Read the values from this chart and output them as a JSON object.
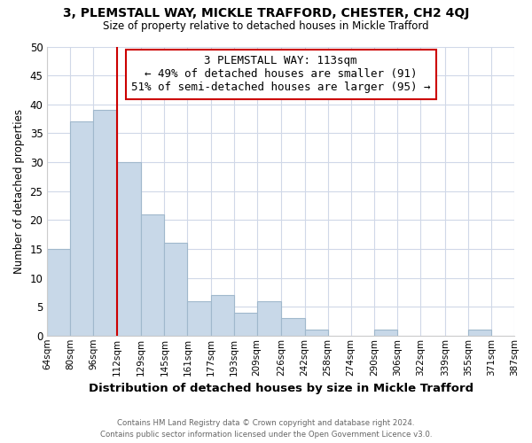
{
  "title": "3, PLEMSTALL WAY, MICKLE TRAFFORD, CHESTER, CH2 4QJ",
  "subtitle": "Size of property relative to detached houses in Mickle Trafford",
  "xlabel": "Distribution of detached houses by size in Mickle Trafford",
  "ylabel": "Number of detached properties",
  "bar_color": "#c8d8e8",
  "bar_edge_color": "#a0b8cc",
  "bin_edges": [
    64,
    80,
    96,
    112,
    129,
    145,
    161,
    177,
    193,
    209,
    226,
    242,
    258,
    274,
    290,
    306,
    322,
    339,
    355,
    371,
    387
  ],
  "bin_labels": [
    "64sqm",
    "80sqm",
    "96sqm",
    "112sqm",
    "129sqm",
    "145sqm",
    "161sqm",
    "177sqm",
    "193sqm",
    "209sqm",
    "226sqm",
    "242sqm",
    "258sqm",
    "274sqm",
    "290sqm",
    "306sqm",
    "322sqm",
    "339sqm",
    "355sqm",
    "371sqm",
    "387sqm"
  ],
  "counts": [
    15,
    37,
    39,
    30,
    21,
    16,
    6,
    7,
    4,
    6,
    3,
    1,
    0,
    0,
    1,
    0,
    0,
    0,
    1,
    0
  ],
  "ylim": [
    0,
    50
  ],
  "yticks": [
    0,
    5,
    10,
    15,
    20,
    25,
    30,
    35,
    40,
    45,
    50
  ],
  "property_line_x": 112,
  "property_line_color": "#cc0000",
  "annotation_line1": "3 PLEMSTALL WAY: 113sqm",
  "annotation_line2": "← 49% of detached houses are smaller (91)",
  "annotation_line3": "51% of semi-detached houses are larger (95) →",
  "footer_line1": "Contains HM Land Registry data © Crown copyright and database right 2024.",
  "footer_line2": "Contains public sector information licensed under the Open Government Licence v3.0.",
  "background_color": "#ffffff",
  "grid_color": "#d0d8e8"
}
